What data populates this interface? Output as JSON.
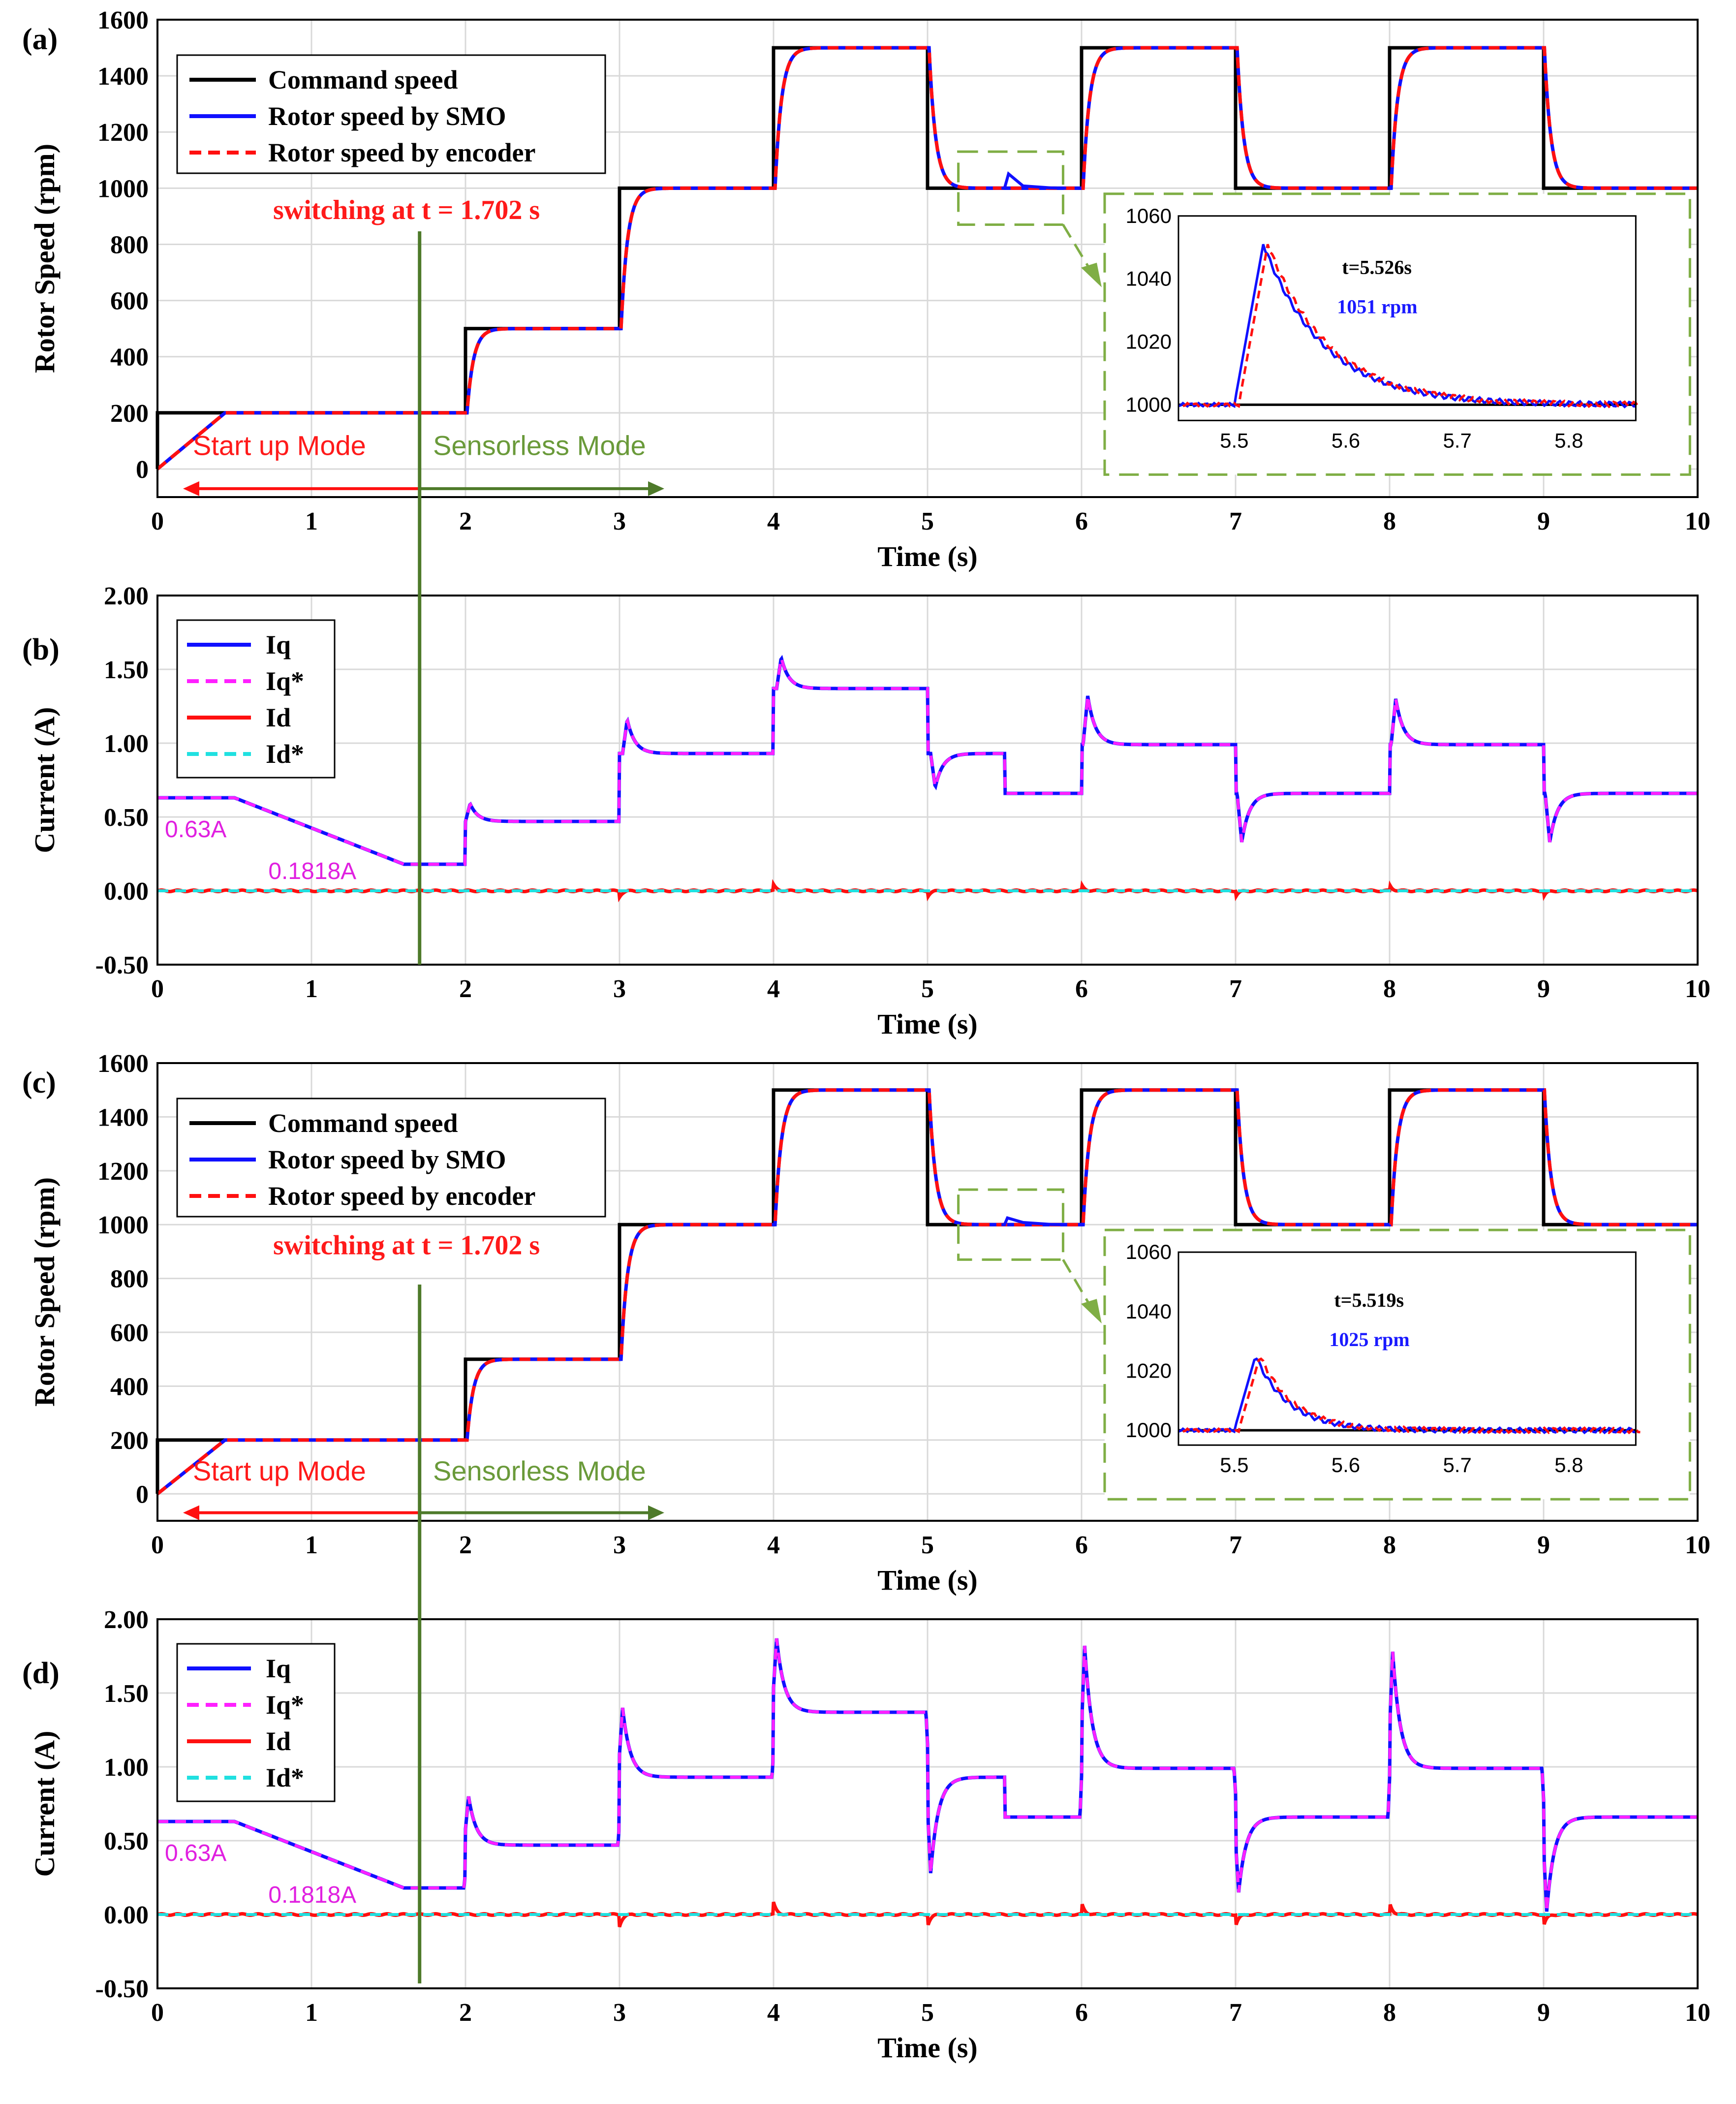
{
  "colors": {
    "command": "#000000",
    "smo": "#1010ff",
    "encoder": "#ff1010",
    "iq": "#1010ff",
    "iq_ref": "#ff20ff",
    "id": "#ff1010",
    "id_ref": "#20e0e0",
    "green_annotation": "#6a9a3a",
    "switch_line": "#4e7a2a",
    "inset_box": "#7fae45"
  },
  "chart_data": [
    {
      "id": "a",
      "panel_label": "(a)",
      "type": "line",
      "xlabel": "Time (s)",
      "ylabel": "Rotor Speed (rpm)",
      "xlim": [
        0,
        10
      ],
      "ylim": [
        -100,
        1600
      ],
      "xticks": [
        "0",
        "1",
        "2",
        "3",
        "4",
        "5",
        "6",
        "7",
        "8",
        "9",
        "10"
      ],
      "yticks": [
        "0",
        "200",
        "400",
        "600",
        "800",
        "1000",
        "1200",
        "1400",
        "1600"
      ],
      "legend": [
        "Command speed",
        "Rotor speed by SMO",
        "Rotor speed by encoder"
      ],
      "annotations": {
        "switching": "switching at t = 1.702 s",
        "startup": "Start up Mode",
        "sensorless": "Sensorless Mode"
      },
      "switch_time": 1.702,
      "command_points": [
        [
          0,
          0
        ],
        [
          0,
          200
        ],
        [
          2,
          200
        ],
        [
          2,
          500
        ],
        [
          3,
          500
        ],
        [
          3,
          1000
        ],
        [
          4,
          1000
        ],
        [
          4,
          1500
        ],
        [
          5,
          1500
        ],
        [
          5,
          1000
        ],
        [
          6,
          1000
        ],
        [
          6,
          1500
        ],
        [
          7,
          1500
        ],
        [
          7,
          1000
        ],
        [
          8,
          1000
        ],
        [
          8,
          1500
        ],
        [
          9,
          1500
        ],
        [
          9,
          1000
        ],
        [
          10,
          1000
        ]
      ],
      "inset": {
        "xlim": [
          5.45,
          5.86
        ],
        "ylim": [
          995,
          1060
        ],
        "xticks": [
          "5.5",
          "5.6",
          "5.7",
          "5.8"
        ],
        "yticks": [
          "1000",
          "1020",
          "1040",
          "1060"
        ],
        "peak_time_label": "t=5.526s",
        "peak_value_label": "1051 rpm",
        "step_time": 5.5,
        "peak_time": 5.526,
        "peak_value": 1051,
        "base_value": 1000
      }
    },
    {
      "id": "b",
      "panel_label": "(b)",
      "type": "line",
      "xlabel": "Time (s)",
      "ylabel": "Current (A)",
      "xlim": [
        0,
        10
      ],
      "ylim": [
        -0.5,
        2.0
      ],
      "xticks": [
        "0",
        "1",
        "2",
        "3",
        "4",
        "5",
        "6",
        "7",
        "8",
        "9",
        "10"
      ],
      "yticks": [
        "-0.50",
        "0.00",
        "0.50",
        "1.00",
        "1.50",
        "2.00"
      ],
      "legend": [
        "Iq",
        "Iq*",
        "Id",
        "Id*"
      ],
      "annotations": {
        "startup_current": "0.63A",
        "end_current": "0.1818A"
      },
      "iq_levels": [
        [
          0,
          0.63
        ],
        [
          0.5,
          0.63
        ],
        [
          1.6,
          0.18
        ],
        [
          2,
          0.18
        ],
        [
          2,
          0.47
        ],
        [
          3,
          0.47
        ],
        [
          3,
          0.93
        ],
        [
          4,
          0.93
        ],
        [
          4,
          1.37
        ],
        [
          5,
          1.37
        ],
        [
          5,
          0.93
        ],
        [
          5.5,
          0.93
        ],
        [
          5.5,
          0.66
        ],
        [
          6,
          0.66
        ],
        [
          6,
          0.99
        ],
        [
          7,
          0.99
        ],
        [
          7,
          0.66
        ],
        [
          8,
          0.66
        ],
        [
          8,
          0.99
        ],
        [
          9,
          0.99
        ],
        [
          9,
          0.66
        ],
        [
          10,
          0.66
        ]
      ],
      "iq_peaks": [
        [
          2.03,
          0.59
        ],
        [
          3.05,
          1.16
        ],
        [
          4.05,
          1.58
        ],
        [
          5.05,
          0.7
        ],
        [
          6.04,
          1.32
        ],
        [
          7.04,
          0.33
        ],
        [
          8.04,
          1.3
        ],
        [
          9.04,
          0.33
        ]
      ]
    },
    {
      "id": "c",
      "panel_label": "(c)",
      "type": "line",
      "xlabel": "Time (s)",
      "ylabel": "Rotor Speed (rpm)",
      "xlim": [
        0,
        10
      ],
      "ylim": [
        -100,
        1600
      ],
      "xticks": [
        "0",
        "1",
        "2",
        "3",
        "4",
        "5",
        "6",
        "7",
        "8",
        "9",
        "10"
      ],
      "yticks": [
        "0",
        "200",
        "400",
        "600",
        "800",
        "1000",
        "1200",
        "1400",
        "1600"
      ],
      "legend": [
        "Command speed",
        "Rotor speed by SMO",
        "Rotor speed by encoder"
      ],
      "annotations": {
        "switching": "switching at t = 1.702 s",
        "startup": "Start up Mode",
        "sensorless": "Sensorless Mode"
      },
      "switch_time": 1.702,
      "command_points": [
        [
          0,
          0
        ],
        [
          0,
          200
        ],
        [
          2,
          200
        ],
        [
          2,
          500
        ],
        [
          3,
          500
        ],
        [
          3,
          1000
        ],
        [
          4,
          1000
        ],
        [
          4,
          1500
        ],
        [
          5,
          1500
        ],
        [
          5,
          1000
        ],
        [
          6,
          1000
        ],
        [
          6,
          1500
        ],
        [
          7,
          1500
        ],
        [
          7,
          1000
        ],
        [
          8,
          1000
        ],
        [
          8,
          1500
        ],
        [
          9,
          1500
        ],
        [
          9,
          1000
        ],
        [
          10,
          1000
        ]
      ],
      "inset": {
        "xlim": [
          5.45,
          5.86
        ],
        "ylim": [
          995,
          1060
        ],
        "xticks": [
          "5.5",
          "5.6",
          "5.7",
          "5.8"
        ],
        "yticks": [
          "1000",
          "1020",
          "1040",
          "1060"
        ],
        "peak_time_label": "t=5.519s",
        "peak_value_label": "1025 rpm",
        "step_time": 5.5,
        "peak_time": 5.519,
        "peak_value": 1025,
        "base_value": 1000
      }
    },
    {
      "id": "d",
      "panel_label": "(d)",
      "type": "line",
      "xlabel": "Time (s)",
      "ylabel": "Current (A)",
      "xlim": [
        0,
        10
      ],
      "ylim": [
        -0.5,
        2.0
      ],
      "xticks": [
        "0",
        "1",
        "2",
        "3",
        "4",
        "5",
        "6",
        "7",
        "8",
        "9",
        "10"
      ],
      "yticks": [
        "-0.50",
        "0.00",
        "0.50",
        "1.00",
        "1.50",
        "2.00"
      ],
      "legend": [
        "Iq",
        "Iq*",
        "Id",
        "Id*"
      ],
      "annotations": {
        "startup_current": "0.63A",
        "end_current": "0.1818A"
      },
      "iq_levels": [
        [
          0,
          0.63
        ],
        [
          0.5,
          0.63
        ],
        [
          1.6,
          0.18
        ],
        [
          2,
          0.18
        ],
        [
          2,
          0.47
        ],
        [
          3,
          0.47
        ],
        [
          3,
          0.93
        ],
        [
          4,
          0.93
        ],
        [
          4,
          1.37
        ],
        [
          5,
          1.37
        ],
        [
          5,
          0.93
        ],
        [
          5.5,
          0.93
        ],
        [
          5.5,
          0.66
        ],
        [
          6,
          0.66
        ],
        [
          6,
          0.99
        ],
        [
          7,
          0.99
        ],
        [
          7,
          0.66
        ],
        [
          8,
          0.66
        ],
        [
          8,
          0.99
        ],
        [
          9,
          0.99
        ],
        [
          9,
          0.66
        ],
        [
          10,
          0.66
        ]
      ],
      "iq_peaks": [
        [
          2.02,
          0.8
        ],
        [
          3.02,
          1.4
        ],
        [
          4.02,
          1.87
        ],
        [
          5.02,
          0.28
        ],
        [
          6.02,
          1.82
        ],
        [
          7.02,
          0.15
        ],
        [
          8.02,
          1.78
        ],
        [
          9.02,
          0.02
        ]
      ]
    }
  ]
}
